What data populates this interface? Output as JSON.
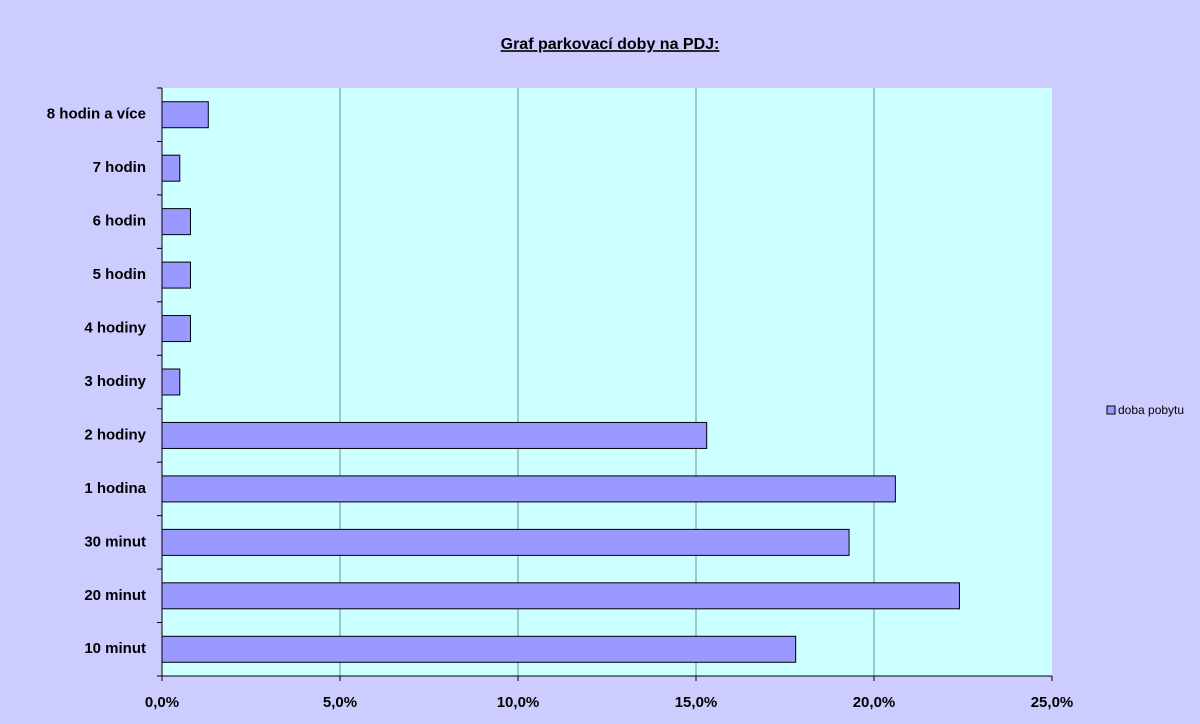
{
  "chart_data": {
    "type": "bar",
    "orientation": "horizontal",
    "title": "Graf parkovací doby na PDJ:",
    "categories": [
      "10 minut",
      "20 minut",
      "30 minut",
      "1 hodina",
      "2 hodiny",
      "3 hodiny",
      "4 hodiny",
      "5 hodin",
      "6 hodin",
      "7 hodin",
      "8 hodin a více"
    ],
    "series": [
      {
        "name": "doba pobytu",
        "color": "#9999ff",
        "values": [
          17.8,
          22.4,
          19.3,
          20.6,
          15.3,
          0.5,
          0.8,
          0.8,
          0.8,
          0.5,
          1.3
        ]
      }
    ],
    "xlim": [
      0,
      25
    ],
    "xticks": [
      {
        "value": 0,
        "label": "0,0%"
      },
      {
        "value": 5,
        "label": "5,0%"
      },
      {
        "value": 10,
        "label": "10,0%"
      },
      {
        "value": 15,
        "label": "15,0%"
      },
      {
        "value": 20,
        "label": "20,0%"
      },
      {
        "value": 25,
        "label": "25,0%"
      }
    ],
    "grid": true,
    "legend": "right"
  }
}
